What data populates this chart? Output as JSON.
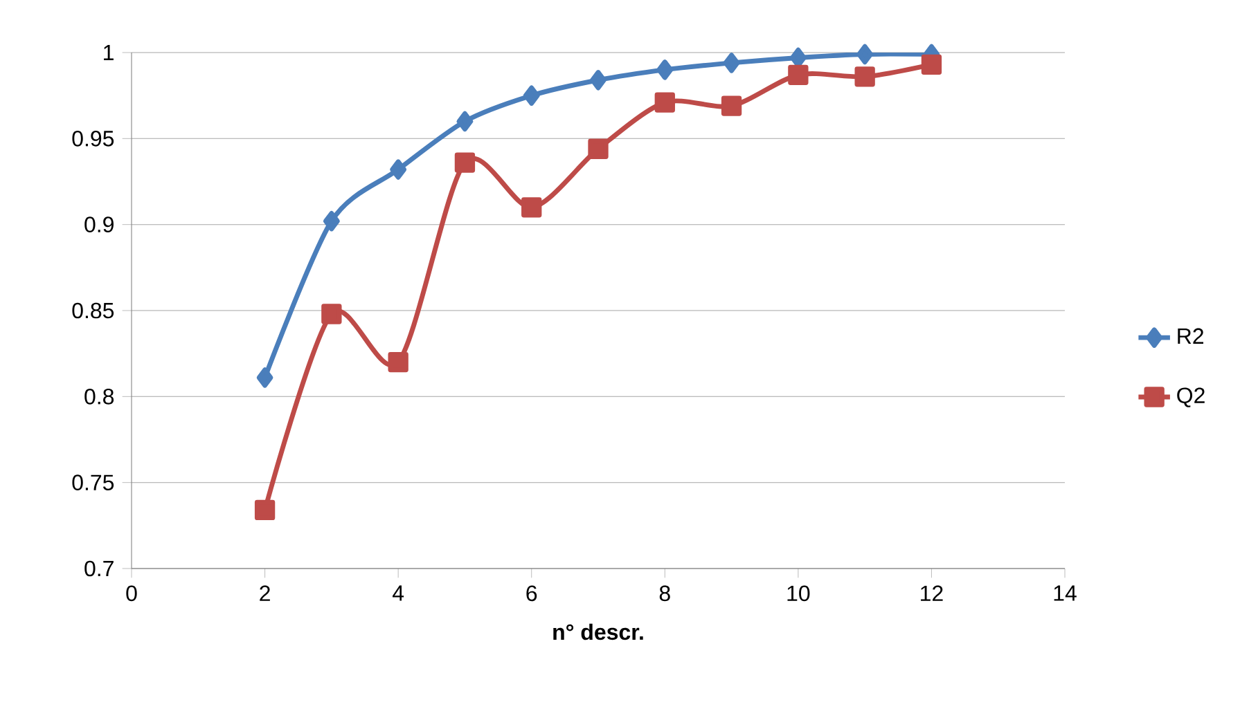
{
  "chart_data": {
    "type": "line",
    "xlabel": "n° descr.",
    "x": [
      2,
      3,
      4,
      5,
      6,
      7,
      8,
      9,
      10,
      11,
      12
    ],
    "series": [
      {
        "name": "R2",
        "color": "#4a7ebb",
        "marker": "diamond",
        "values": [
          0.811,
          0.902,
          0.932,
          0.96,
          0.975,
          0.984,
          0.99,
          0.994,
          0.997,
          0.999,
          0.999
        ]
      },
      {
        "name": "Q2",
        "color": "#be4b48",
        "marker": "square",
        "values": [
          0.734,
          0.848,
          0.82,
          0.936,
          0.91,
          0.944,
          0.971,
          0.969,
          0.987,
          0.986,
          0.993
        ]
      }
    ],
    "xlim": [
      0,
      14
    ],
    "xticks": [
      0,
      2,
      4,
      6,
      8,
      10,
      12,
      14
    ],
    "ylim": [
      0.7,
      1
    ],
    "yticks": [
      0.7,
      0.75,
      0.8,
      0.85,
      0.9,
      0.95,
      1
    ],
    "grid": "y",
    "legend": "right",
    "line_style": "solid"
  }
}
